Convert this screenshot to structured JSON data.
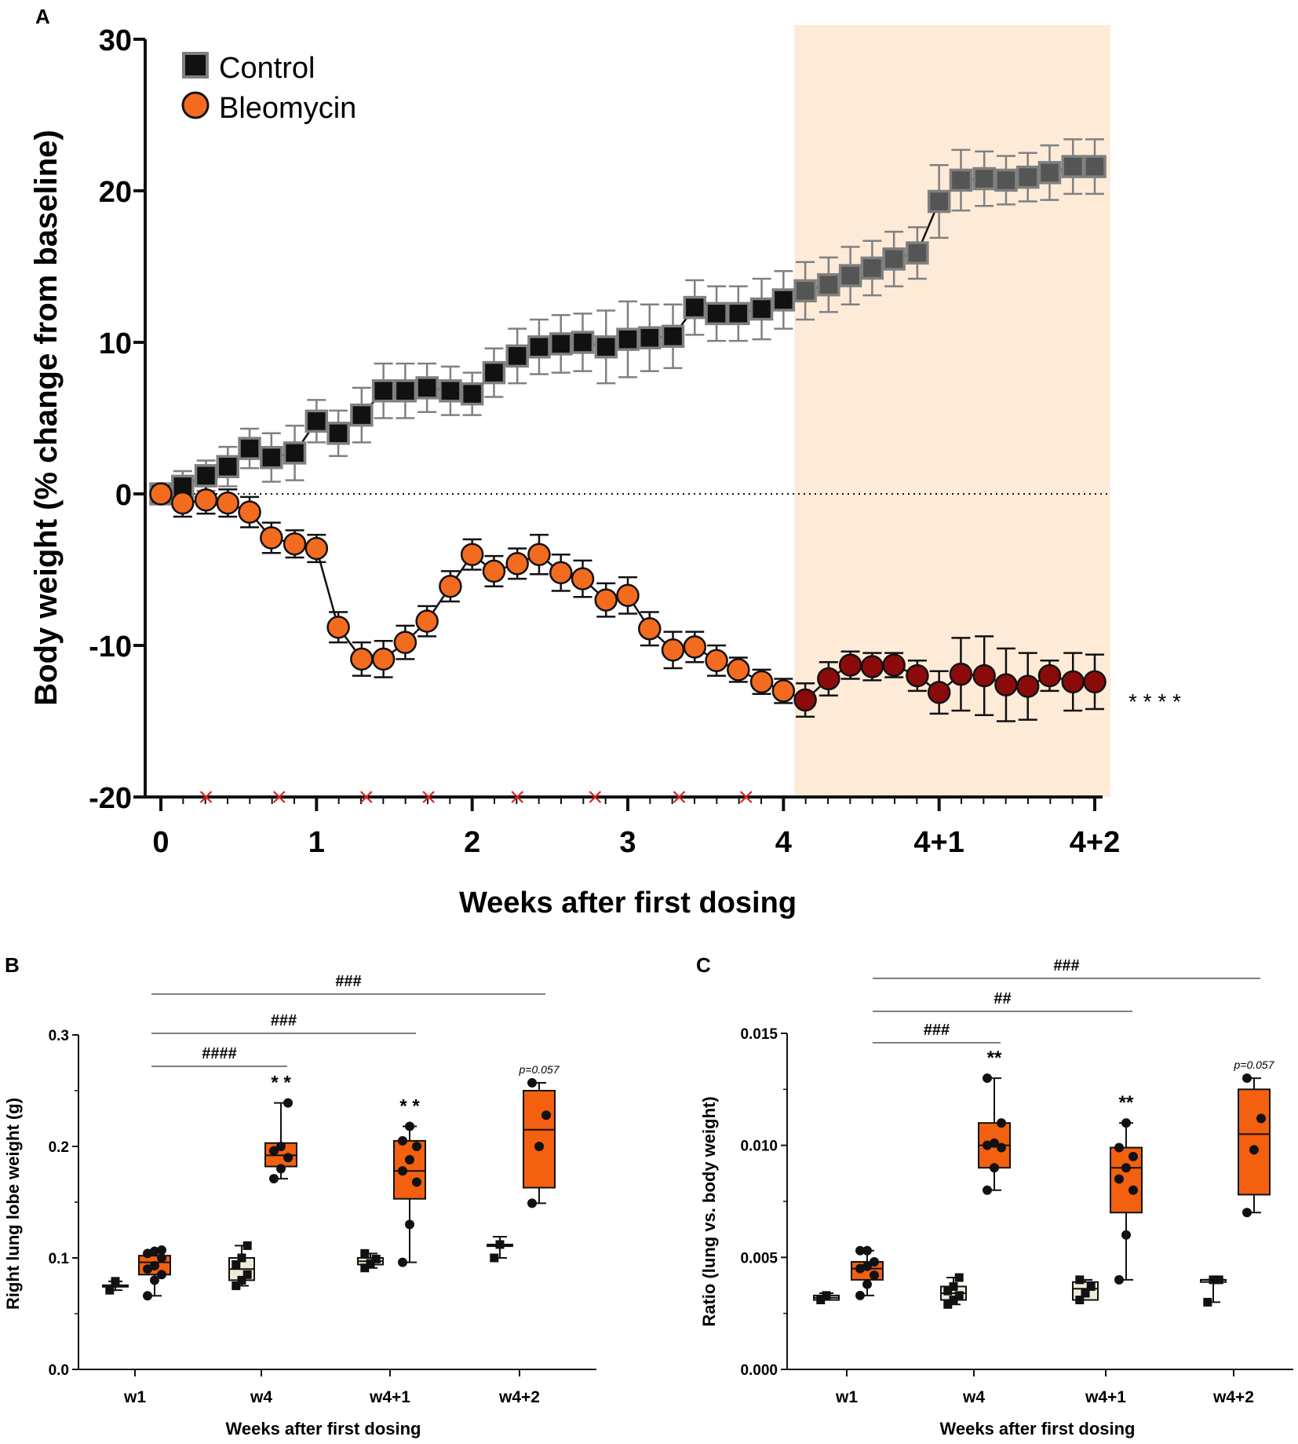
{
  "colors": {
    "control": "#111111",
    "control_after": "#555555",
    "control_edge": "#808080",
    "bleomycin": "#f26b1f",
    "bleomycin_after": "#8b0b0b",
    "shade": "#fdebd8",
    "ctrl_box": "#eeecd6",
    "bleo_box": "#f26010",
    "dose_marker": "#e01f1f"
  },
  "chart_data": [
    {
      "panel": "A",
      "type": "line",
      "ylabel": "Body weight (% change from baseline)",
      "xlabel": "Weeks after first dosing",
      "ylim": [
        -20,
        30
      ],
      "yticks": [
        "30",
        "20",
        "10",
        "0",
        "-10",
        "-20"
      ],
      "xlim": [
        0,
        6
      ],
      "xticks": [
        "0",
        "1",
        "2",
        "3",
        "4",
        "4+1",
        "4+2"
      ],
      "shaded_region": [
        4.07,
        6.1
      ],
      "reference_line_y": 0,
      "significance": "* * * *",
      "dose_markers_x": [
        0.29,
        0.76,
        1.32,
        1.72,
        2.29,
        2.79,
        3.33,
        3.76
      ],
      "series": [
        {
          "name": "Control",
          "marker": "square",
          "x": [
            0,
            0.14,
            0.29,
            0.43,
            0.57,
            0.71,
            0.86,
            1.0,
            1.14,
            1.29,
            1.43,
            1.57,
            1.71,
            1.86,
            2.0,
            2.14,
            2.29,
            2.43,
            2.57,
            2.71,
            2.86,
            3.0,
            3.14,
            3.29,
            3.43,
            3.57,
            3.71,
            3.86,
            4.0,
            4.14,
            4.29,
            4.43,
            4.57,
            4.71,
            4.86,
            5.0,
            5.14,
            5.29,
            5.43,
            5.57,
            5.71,
            5.86,
            6.0
          ],
          "y": [
            0,
            0.5,
            1.2,
            1.8,
            3.0,
            2.4,
            2.7,
            4.8,
            4.0,
            5.2,
            6.8,
            6.8,
            7.0,
            6.8,
            6.6,
            8.0,
            9.1,
            9.7,
            9.9,
            10.0,
            9.7,
            10.2,
            10.3,
            10.4,
            12.3,
            11.9,
            11.9,
            12.2,
            12.8,
            13.4,
            13.8,
            14.4,
            14.9,
            15.5,
            15.9,
            19.3,
            20.7,
            20.8,
            20.7,
            20.9,
            21.2,
            21.6,
            21.6
          ],
          "err": [
            0,
            1.0,
            1.0,
            1.3,
            1.3,
            1.6,
            1.8,
            1.4,
            1.5,
            1.8,
            1.8,
            1.8,
            1.6,
            1.6,
            1.4,
            1.6,
            1.8,
            1.8,
            1.9,
            1.9,
            2.4,
            2.5,
            2.2,
            2.1,
            1.8,
            1.8,
            1.8,
            2.0,
            1.9,
            1.9,
            1.8,
            1.9,
            1.8,
            1.8,
            1.7,
            2.4,
            2.0,
            1.8,
            1.6,
            1.6,
            1.8,
            1.8,
            1.8
          ]
        },
        {
          "name": "Bleomycin",
          "marker": "circle",
          "x": [
            0,
            0.14,
            0.29,
            0.43,
            0.57,
            0.71,
            0.86,
            1.0,
            1.14,
            1.29,
            1.43,
            1.57,
            1.71,
            1.86,
            2.0,
            2.14,
            2.29,
            2.43,
            2.57,
            2.71,
            2.86,
            3.0,
            3.14,
            3.29,
            3.43,
            3.57,
            3.71,
            3.86,
            4.0,
            4.14,
            4.29,
            4.43,
            4.57,
            4.71,
            4.86,
            5.0,
            5.14,
            5.29,
            5.43,
            5.57,
            5.71,
            5.86,
            6.0
          ],
          "y": [
            0,
            -0.6,
            -0.4,
            -0.6,
            -1.2,
            -2.9,
            -3.3,
            -3.6,
            -8.8,
            -10.9,
            -10.9,
            -9.8,
            -8.4,
            -6.1,
            -4.0,
            -5.1,
            -4.6,
            -4.0,
            -5.2,
            -5.6,
            -7.0,
            -6.7,
            -8.9,
            -10.3,
            -10.1,
            -11.0,
            -11.6,
            -12.4,
            -13.0,
            -13.6,
            -12.2,
            -11.3,
            -11.4,
            -11.3,
            -12.0,
            -13.1,
            -11.9,
            -12.0,
            -12.6,
            -12.7,
            -12.0,
            -12.4,
            -12.4
          ]
        }
      ],
      "bleomycin_err": [
        0,
        0.9,
        0.9,
        0.9,
        1.0,
        1.0,
        0.9,
        0.9,
        1.0,
        1.1,
        1.2,
        1.1,
        1.0,
        1.0,
        1.0,
        1.0,
        1.0,
        1.3,
        1.2,
        1.2,
        1.1,
        1.2,
        1.1,
        1.2,
        1.0,
        1.0,
        0.8,
        0.8,
        0.8,
        1.1,
        1.1,
        0.9,
        0.9,
        0.8,
        1.0,
        1.4,
        2.4,
        2.6,
        2.4,
        2.2,
        1.0,
        1.9,
        1.8
      ]
    },
    {
      "panel": "B",
      "type": "box",
      "ylabel": "Right lung lobe weight (g)",
      "xlabel": "Weeks after first dosing",
      "ylim": [
        0,
        0.3
      ],
      "yticks": [
        "0.3",
        "0.2",
        "0.1",
        "0.0"
      ],
      "categories": [
        "w1",
        "w4",
        "w4+1",
        "w4+2"
      ],
      "groups": [
        {
          "cat": 0,
          "series": "Control",
          "min": 0.071,
          "q1": 0.0745,
          "med": 0.075,
          "q3": 0.0755,
          "max": 0.079,
          "points": [
            0.071,
            0.079
          ]
        },
        {
          "cat": 0,
          "series": "Bleomycin",
          "min": 0.066,
          "q1": 0.085,
          "med": 0.096,
          "q3": 0.102,
          "max": 0.107,
          "points": [
            0.066,
            0.08,
            0.085,
            0.09,
            0.093,
            0.1,
            0.104,
            0.106,
            0.107
          ]
        },
        {
          "cat": 1,
          "series": "Control",
          "min": 0.075,
          "q1": 0.08,
          "med": 0.09,
          "q3": 0.1,
          "max": 0.111,
          "points": [
            0.075,
            0.08,
            0.085,
            0.094,
            0.1,
            0.111
          ]
        },
        {
          "cat": 1,
          "series": "Bleomycin",
          "min": 0.171,
          "q1": 0.182,
          "med": 0.192,
          "q3": 0.203,
          "max": 0.239,
          "points": [
            0.171,
            0.18,
            0.19,
            0.196,
            0.2,
            0.239
          ]
        },
        {
          "cat": 2,
          "series": "Control",
          "min": 0.091,
          "q1": 0.094,
          "med": 0.097,
          "q3": 0.1,
          "max": 0.104,
          "points": [
            0.091,
            0.095,
            0.099,
            0.104
          ]
        },
        {
          "cat": 2,
          "series": "Bleomycin",
          "min": 0.096,
          "q1": 0.153,
          "med": 0.178,
          "q3": 0.205,
          "max": 0.218,
          "points": [
            0.096,
            0.13,
            0.168,
            0.178,
            0.188,
            0.2,
            0.205,
            0.218
          ]
        },
        {
          "cat": 3,
          "series": "Control",
          "min": 0.1,
          "q1": 0.1105,
          "med": 0.111,
          "q3": 0.112,
          "max": 0.119,
          "points": [
            0.1,
            0.112
          ]
        },
        {
          "cat": 3,
          "series": "Bleomycin",
          "min": 0.149,
          "q1": 0.163,
          "med": 0.215,
          "q3": 0.25,
          "max": 0.257,
          "points": [
            0.149,
            0.2,
            0.228,
            0.257
          ]
        }
      ],
      "star_labels": [
        {
          "cat": 1,
          "text": "* *"
        },
        {
          "cat": 2,
          "text": "* *"
        },
        {
          "cat": 3,
          "text": "p=0.057"
        }
      ],
      "brackets": [
        {
          "from": 0,
          "to": 3,
          "text": "###"
        },
        {
          "from": 0,
          "to": 2,
          "text": "###"
        },
        {
          "from": 0,
          "to": 1,
          "text": "####"
        }
      ]
    },
    {
      "panel": "C",
      "type": "box",
      "ylabel": "Ratio (lung vs. body weight)",
      "xlabel": "Weeks after first dosing",
      "ylim": [
        0,
        0.015
      ],
      "yticks": [
        "0.015",
        "0.010",
        "0.005",
        "0.000"
      ],
      "categories": [
        "w1",
        "w4",
        "w4+1",
        "w4+2"
      ],
      "groups": [
        {
          "cat": 0,
          "series": "Control",
          "min": 0.0031,
          "q1": 0.0031,
          "med": 0.0032,
          "q3": 0.0033,
          "max": 0.0034,
          "points": [
            0.0031,
            0.0033
          ]
        },
        {
          "cat": 0,
          "series": "Bleomycin",
          "min": 0.0033,
          "q1": 0.004,
          "med": 0.0045,
          "q3": 0.0048,
          "max": 0.0053,
          "points": [
            0.0033,
            0.0038,
            0.0042,
            0.0045,
            0.0046,
            0.0048,
            0.0053,
            0.0053
          ]
        },
        {
          "cat": 1,
          "series": "Control",
          "min": 0.0029,
          "q1": 0.0031,
          "med": 0.0034,
          "q3": 0.0037,
          "max": 0.0041,
          "points": [
            0.0029,
            0.0031,
            0.0033,
            0.0035,
            0.0037,
            0.0041
          ]
        },
        {
          "cat": 1,
          "series": "Bleomycin",
          "min": 0.008,
          "q1": 0.009,
          "med": 0.01,
          "q3": 0.011,
          "max": 0.013,
          "points": [
            0.008,
            0.009,
            0.0099,
            0.01,
            0.0101,
            0.011,
            0.013
          ]
        },
        {
          "cat": 2,
          "series": "Control",
          "min": 0.0031,
          "q1": 0.0031,
          "med": 0.0036,
          "q3": 0.0039,
          "max": 0.004,
          "points": [
            0.0031,
            0.0034,
            0.0037,
            0.004
          ]
        },
        {
          "cat": 2,
          "series": "Bleomycin",
          "min": 0.004,
          "q1": 0.007,
          "med": 0.009,
          "q3": 0.0099,
          "max": 0.011,
          "points": [
            0.004,
            0.006,
            0.008,
            0.0085,
            0.009,
            0.0095,
            0.0099,
            0.011
          ]
        },
        {
          "cat": 3,
          "series": "Control",
          "min": 0.003,
          "q1": 0.0039,
          "med": 0.004,
          "q3": 0.004,
          "max": 0.004,
          "points": [
            0.003,
            0.004,
            0.004
          ]
        },
        {
          "cat": 3,
          "series": "Bleomycin",
          "min": 0.007,
          "q1": 0.0078,
          "med": 0.0105,
          "q3": 0.0125,
          "max": 0.013,
          "points": [
            0.007,
            0.0098,
            0.0112,
            0.013
          ]
        }
      ],
      "star_labels": [
        {
          "cat": 1,
          "text": "**"
        },
        {
          "cat": 2,
          "text": "**"
        },
        {
          "cat": 3,
          "text": "p=0.057"
        }
      ],
      "brackets": [
        {
          "from": 0,
          "to": 3,
          "text": "###"
        },
        {
          "from": 0,
          "to": 2,
          "text": "##"
        },
        {
          "from": 0,
          "to": 1,
          "text": "###"
        }
      ]
    }
  ]
}
